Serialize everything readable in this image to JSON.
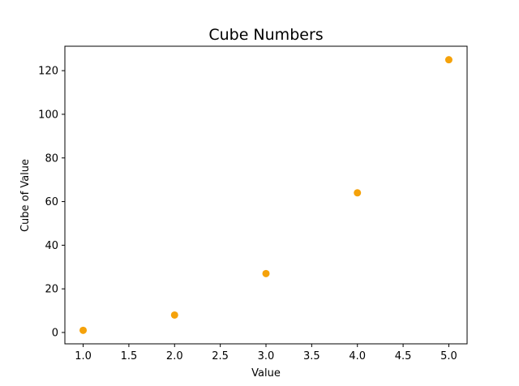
{
  "chart_data": {
    "type": "scatter",
    "title": "Cube Numbers",
    "xlabel": "Value",
    "ylabel": "Cube of Value",
    "x": [
      1,
      2,
      3,
      4,
      5
    ],
    "y": [
      1,
      8,
      27,
      64,
      125
    ],
    "xlim": [
      0.8,
      5.2
    ],
    "ylim": [
      -5.2,
      131.2
    ],
    "xticks": [
      1.0,
      1.5,
      2.0,
      2.5,
      3.0,
      3.5,
      4.0,
      4.5,
      5.0
    ],
    "yticks": [
      0,
      20,
      40,
      60,
      80,
      100,
      120
    ],
    "xtick_labels": [
      "1.0",
      "1.5",
      "2.0",
      "2.5",
      "3.0",
      "3.5",
      "4.0",
      "4.5",
      "5.0"
    ],
    "ytick_labels": [
      "0",
      "20",
      "40",
      "60",
      "80",
      "100",
      "120"
    ],
    "point_color": "#f5a20a",
    "grid": false
  }
}
